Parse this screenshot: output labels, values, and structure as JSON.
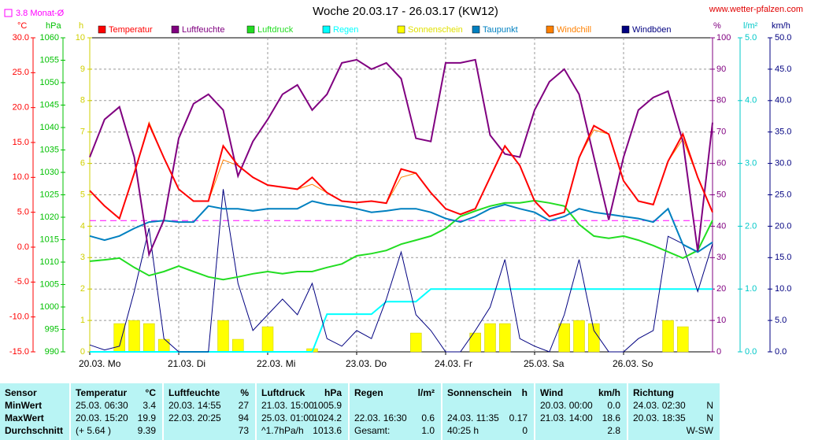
{
  "chart_data": {
    "type": "line",
    "title": "Woche 20.03.17 - 26.03.17 (KW12)",
    "source": "www.wetter-pfalzen.com",
    "reference": {
      "value": 3.8,
      "label": "3.8 Monat-Ø",
      "axis": 0,
      "color": "#ff00ff"
    },
    "xlim": [
      0,
      168
    ],
    "xticks": [
      {
        "value": 0,
        "label": "20.03. Mo"
      },
      {
        "value": 24,
        "label": "21.03. Di"
      },
      {
        "value": 48,
        "label": "22.03. Mi"
      },
      {
        "value": 72,
        "label": "23.03. Do"
      },
      {
        "value": 96,
        "label": "24.03. Fr"
      },
      {
        "value": 120,
        "label": "25.03. Sa"
      },
      {
        "value": 144,
        "label": "26.03. So"
      }
    ],
    "grid": true,
    "axes": [
      {
        "unit": "°C",
        "color": "#ff0000",
        "lim": [
          -15,
          30
        ],
        "ticks": [
          {
            "value": -15,
            "label": "-15.0"
          },
          {
            "value": -10,
            "label": "-10.0"
          },
          {
            "value": -5,
            "label": "-5.0"
          },
          {
            "value": 0,
            "label": "0.0"
          },
          {
            "value": 5,
            "label": "5.0"
          },
          {
            "value": 10,
            "label": "10.0"
          },
          {
            "value": 15,
            "label": "15.0"
          },
          {
            "value": 20,
            "label": "20.0"
          },
          {
            "value": 25,
            "label": "25.0"
          },
          {
            "value": 30,
            "label": "30.0"
          }
        ]
      },
      {
        "unit": "hPa",
        "color": "#00c000",
        "lim": [
          990,
          1060
        ],
        "ticks": [
          990,
          995,
          1000,
          1005,
          1010,
          1015,
          1020,
          1025,
          1030,
          1035,
          1040,
          1045,
          1050,
          1055,
          1060
        ]
      },
      {
        "unit": "h",
        "color": "#d0d000",
        "lim": [
          0,
          10
        ],
        "ticks": [
          0,
          1,
          2,
          3,
          4,
          5,
          6,
          7,
          8,
          9,
          10
        ]
      },
      {
        "unit": "%",
        "color": "#800080",
        "lim": [
          0,
          100
        ],
        "ticks": [
          0,
          10,
          20,
          30,
          40,
          50,
          60,
          70,
          80,
          90,
          100
        ]
      },
      {
        "unit": "l/m²",
        "color": "#00c8c8",
        "lim": [
          0,
          5
        ],
        "ticks": [
          {
            "value": 0,
            "label": "0.0"
          },
          {
            "value": 1,
            "label": "1.0"
          },
          {
            "value": 2,
            "label": "2.0"
          },
          {
            "value": 3,
            "label": "3.0"
          },
          {
            "value": 4,
            "label": "4.0"
          },
          {
            "value": 5,
            "label": "5.0"
          }
        ]
      },
      {
        "unit": "km/h",
        "color": "#000080",
        "lim": [
          0,
          50
        ],
        "ticks": [
          {
            "value": 0,
            "label": "0.0"
          },
          {
            "value": 5,
            "label": "5.0"
          },
          {
            "value": 10,
            "label": "10.0"
          },
          {
            "value": 15,
            "label": "15.0"
          },
          {
            "value": 20,
            "label": "20.0"
          },
          {
            "value": 25,
            "label": "25.0"
          },
          {
            "value": 30,
            "label": "30.0"
          },
          {
            "value": 35,
            "label": "35.0"
          },
          {
            "value": 40,
            "label": "40.0"
          },
          {
            "value": 45,
            "label": "45.0"
          },
          {
            "value": 50,
            "label": "50.0"
          }
        ]
      }
    ],
    "x": [
      0,
      4,
      8,
      12,
      16,
      20,
      24,
      28,
      32,
      36,
      40,
      44,
      48,
      52,
      56,
      60,
      64,
      68,
      72,
      76,
      80,
      84,
      88,
      92,
      96,
      100,
      104,
      108,
      112,
      116,
      120,
      124,
      128,
      132,
      136,
      140,
      144,
      148,
      152,
      156,
      160,
      164,
      168
    ],
    "series": [
      {
        "name": "Temperatur",
        "color": "#ff0000",
        "axis": 0,
        "values": [
          8.1,
          5.9,
          4.1,
          10.6,
          17.6,
          12.8,
          8.3,
          6.6,
          6.6,
          14.5,
          11.7,
          10.0,
          8.9,
          8.6,
          8.3,
          10.0,
          7.8,
          6.6,
          6.4,
          6.6,
          6.3,
          11.2,
          10.6,
          7.8,
          5.5,
          4.7,
          5.5,
          10.0,
          14.5,
          11.7,
          6.6,
          4.4,
          5.0,
          12.8,
          17.4,
          16.2,
          9.5,
          6.6,
          6.1,
          12.3,
          16.2,
          10.0,
          5.0
        ]
      },
      {
        "name": "Luftfeuchte",
        "color": "#800080",
        "axis": 3,
        "values": [
          62,
          74,
          78,
          62,
          31,
          42,
          68,
          79,
          82,
          77,
          56,
          67,
          74,
          82,
          85,
          77,
          82,
          92,
          93,
          90,
          92,
          87,
          68,
          67,
          92,
          92,
          93,
          69,
          63,
          62,
          77,
          86,
          90,
          82,
          62,
          42,
          62,
          77,
          81,
          83,
          67,
          32,
          73
        ]
      },
      {
        "name": "Luftdruck",
        "color": "#22dd22",
        "axis": 1,
        "values": [
          1010.2,
          1010.5,
          1010.9,
          1008.8,
          1007.0,
          1007.9,
          1009.1,
          1007.9,
          1006.7,
          1006.1,
          1006.7,
          1007.4,
          1007.9,
          1007.4,
          1007.9,
          1007.9,
          1008.8,
          1009.6,
          1011.4,
          1011.9,
          1012.6,
          1014.0,
          1014.9,
          1015.8,
          1017.5,
          1020.2,
          1021.4,
          1022.5,
          1023.2,
          1023.2,
          1023.7,
          1023.2,
          1022.5,
          1018.4,
          1015.8,
          1015.3,
          1015.8,
          1014.9,
          1013.7,
          1012.3,
          1010.9,
          1012.6,
          1019.3
        ]
      },
      {
        "name": "Regen",
        "color": "#00ffff",
        "axis": 4,
        "values": [
          0,
          0,
          0,
          0,
          0,
          0,
          0,
          0,
          0,
          0,
          0,
          0,
          0,
          0,
          0,
          0,
          0.6,
          0.6,
          0.6,
          0.6,
          0.8,
          0.8,
          0.8,
          1.0,
          1.0,
          1.0,
          1.0,
          1.0,
          1.0,
          1.0,
          1.0,
          1.0,
          1.0,
          1.0,
          1.0,
          1.0,
          1.0,
          1.0,
          1.0,
          1.0,
          1.0,
          1.0,
          1.0
        ]
      },
      {
        "name": "Sonnenschein",
        "color": "#ffff00",
        "axis": 2,
        "style": "bar",
        "values": [
          0,
          0,
          0.9,
          1.0,
          0.9,
          0.4,
          0,
          0,
          0,
          1.0,
          0.4,
          0,
          0.8,
          0,
          0,
          0.1,
          0,
          0,
          0,
          0,
          0,
          0,
          0.6,
          0,
          0,
          0,
          0.6,
          0.9,
          0.9,
          0,
          0,
          0,
          0.9,
          1.0,
          0.9,
          0,
          0,
          0,
          0,
          1.0,
          0.8,
          0,
          0
        ]
      },
      {
        "name": "Taupunkt",
        "color": "#0080c0",
        "axis": 0,
        "values": [
          1.6,
          1.0,
          1.6,
          2.7,
          3.6,
          3.8,
          3.6,
          3.6,
          5.9,
          5.5,
          5.5,
          5.2,
          5.5,
          5.5,
          5.5,
          6.6,
          6.1,
          5.9,
          5.5,
          5.0,
          5.2,
          5.5,
          5.5,
          5.0,
          4.1,
          3.6,
          4.4,
          5.5,
          6.1,
          5.5,
          5.0,
          3.8,
          4.4,
          5.5,
          5.0,
          4.7,
          4.4,
          4.1,
          3.6,
          5.5,
          0.4,
          -0.7,
          0.7
        ]
      },
      {
        "name": "Windchill",
        "color": "#ff8000",
        "axis": 0,
        "values": [
          8.1,
          5.9,
          4.1,
          10.6,
          17.9,
          12.8,
          8.3,
          6.6,
          6.6,
          12.5,
          11.7,
          10.0,
          8.9,
          8.6,
          8.3,
          9.0,
          7.8,
          6.6,
          6.4,
          6.6,
          6.3,
          10.0,
          10.6,
          7.8,
          5.5,
          4.7,
          5.5,
          10.0,
          14.5,
          11.7,
          6.6,
          4.4,
          5.0,
          12.8,
          16.8,
          16.2,
          9.5,
          6.6,
          6.1,
          12.3,
          15.5,
          10.0,
          5.0
        ]
      },
      {
        "name": "Windböen",
        "color": "#000080",
        "axis": 5,
        "values": [
          1.1,
          0.3,
          0.9,
          9.6,
          19.7,
          2.1,
          0,
          0,
          0,
          25.9,
          10.9,
          3.4,
          5.9,
          8.4,
          5.9,
          10.9,
          2.1,
          0.9,
          3.4,
          2.1,
          8.4,
          15.9,
          5.9,
          3.4,
          0,
          0,
          3.4,
          7.1,
          14.7,
          2.1,
          0.9,
          0,
          5.9,
          14.7,
          3.4,
          0,
          0,
          2.1,
          3.4,
          18.4,
          17.2,
          9.6,
          17.2
        ]
      }
    ]
  },
  "table": {
    "header": [
      {
        "name": "Sensor"
      },
      {
        "name": "Temperatur",
        "unit": "°C"
      },
      {
        "name": "Luftfeuchte",
        "unit": "%"
      },
      {
        "name": "Luftdruck",
        "unit": "hPa"
      },
      {
        "name": "Regen",
        "unit": "l/m²"
      },
      {
        "name": "Sonnenschein",
        "unit": "h"
      },
      {
        "name": "Wind",
        "unit": "km/h"
      },
      {
        "name": "Richtung"
      }
    ],
    "rows": [
      {
        "label": "MinWert",
        "cells": [
          {
            "time": "25.03.  06:30",
            "value": "3.4"
          },
          {
            "time": "20.03.  14:55",
            "value": "27"
          },
          {
            "time": "21.03.  15:00",
            "value": "1005.9"
          },
          {},
          {},
          {
            "time": "20.03.  00:00",
            "value": "0.0"
          },
          {
            "time": "24.03.  02:30",
            "value": "N"
          }
        ]
      },
      {
        "label": "MaxWert",
        "cells": [
          {
            "time": "20.03.  15:20",
            "value": "19.9"
          },
          {
            "time": "22.03.  20:25",
            "value": "94"
          },
          {
            "time": "25.03.  01:00",
            "value": "1024.2"
          },
          {
            "time": "22.03.  16:30",
            "value": "0.6"
          },
          {
            "time": "24.03.  11:35",
            "value": "0.17"
          },
          {
            "time": "21.03.  14:00",
            "value": "18.6"
          },
          {
            "time": "20.03.  18:35",
            "value": "N"
          }
        ]
      },
      {
        "label": "Durchschnitt",
        "cells": [
          {
            "time": "(+ 5.64 )",
            "value": "9.39"
          },
          {
            "value": "73"
          },
          {
            "time": "^1.7hPa/h",
            "value": "1013.6"
          },
          {
            "time": "Gesamt:",
            "value": "1.0"
          },
          {
            "time": "40:25 h",
            "value": "0"
          },
          {
            "value": "2.8"
          },
          {
            "value": "W-SW"
          }
        ]
      }
    ]
  }
}
